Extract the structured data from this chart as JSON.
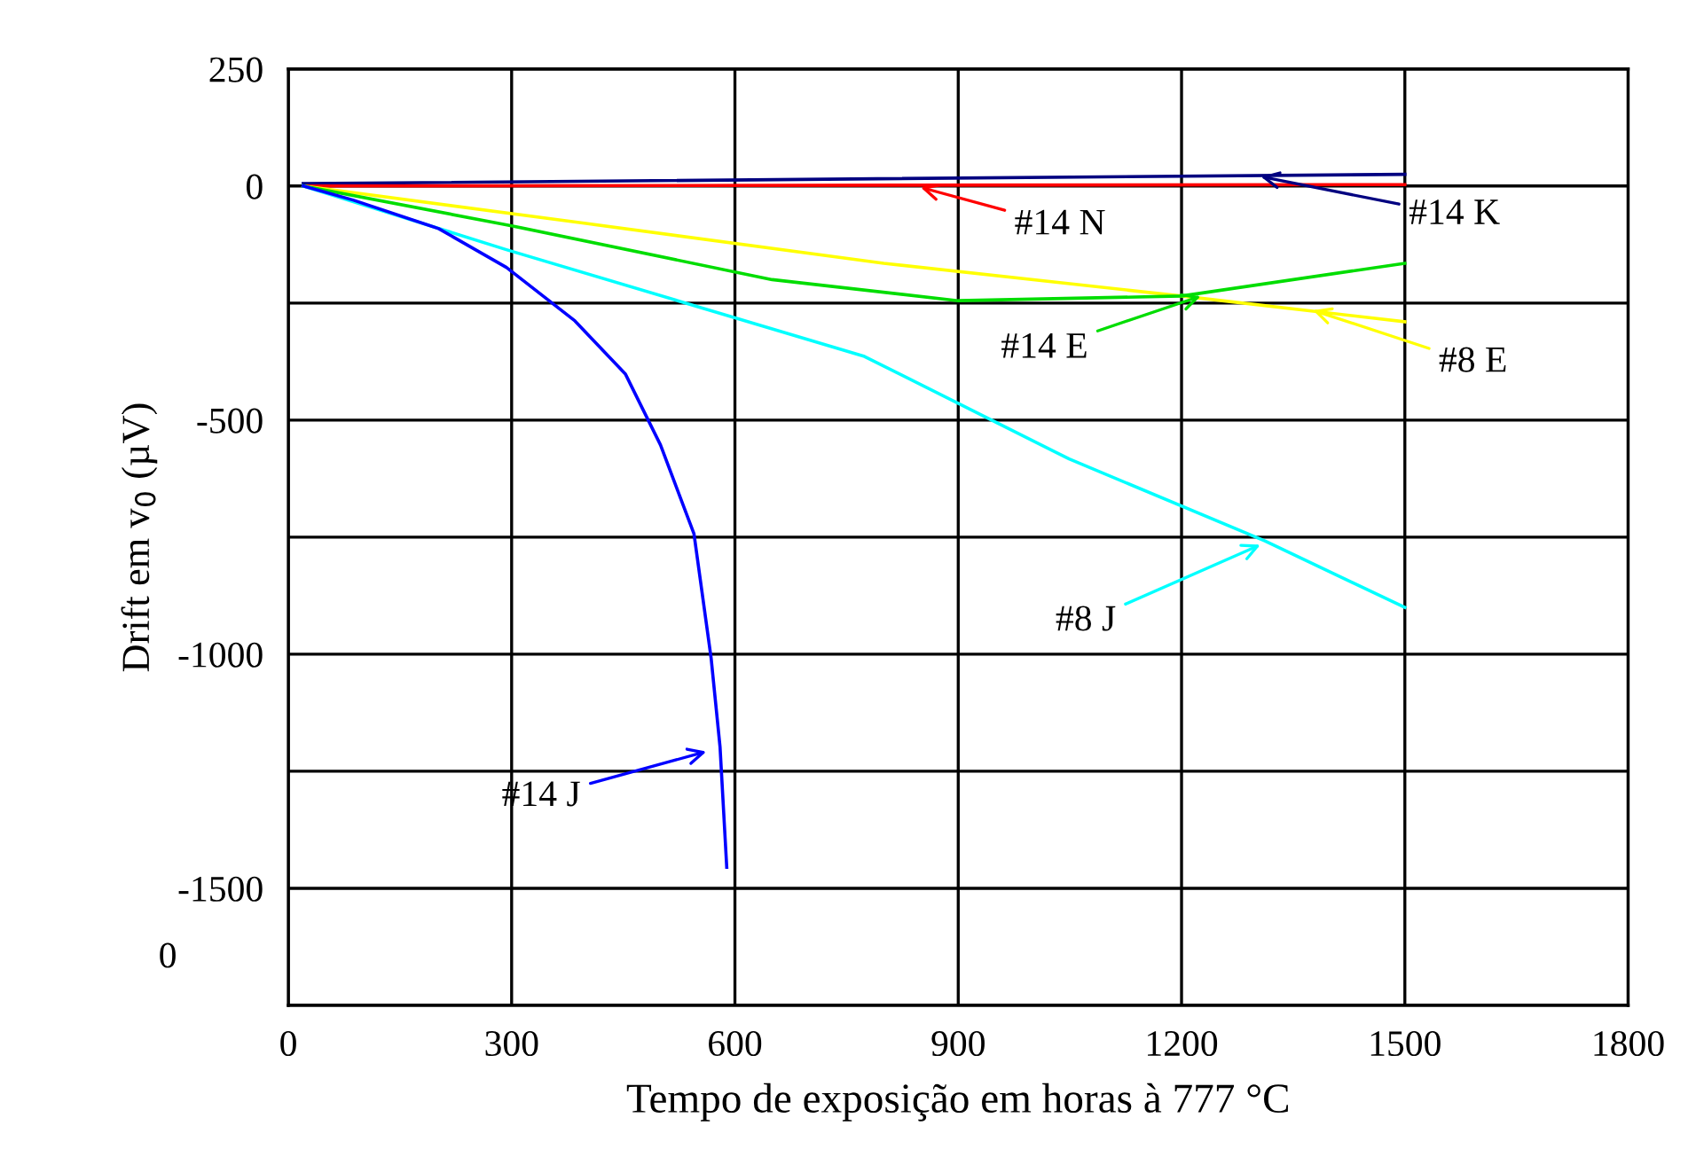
{
  "chart_data": {
    "type": "line",
    "xlabel": "Tempo de exposição em horas à 777 °C",
    "ylabel": "Drift em v$_{0}$ (µV)",
    "xlim": [
      0,
      1800
    ],
    "xticks": [
      0,
      300,
      600,
      900,
      1200,
      1500,
      1800
    ],
    "ylim": [
      -1750,
      250
    ],
    "yticks": [
      250,
      0,
      {
        "value": -250,
        "label": null
      },
      -500,
      {
        "value": -750,
        "label": null
      },
      -1000,
      {
        "value": -1250,
        "label": null
      },
      -1500,
      {
        "value": -1750,
        "label": null
      }
    ],
    "grid": true,
    "legend": false,
    "marker": "none",
    "line_style": "solid",
    "series": [
      {
        "color": "#000080",
        "x": [
          20,
          1500
        ],
        "values": [
          5,
          25
        ]
      },
      {
        "color": "#ff0000",
        "x": [
          20,
          1500
        ],
        "values": [
          0,
          3
        ]
      },
      {
        "color": "#ffff00",
        "x": [
          20,
          400,
          800,
          1200,
          1500
        ],
        "values": [
          0,
          -80,
          -165,
          -235,
          -290
        ]
      },
      {
        "color": "#00dd00",
        "x": [
          20,
          300,
          650,
          900,
          1200,
          1500
        ],
        "values": [
          0,
          -85,
          -200,
          -245,
          -235,
          -165
        ]
      },
      {
        "color": "#00ffff",
        "x": [
          20,
          293,
          774,
          1049,
          1312,
          1500
        ],
        "values": [
          0,
          -136,
          -364,
          -583,
          -758,
          -900
        ]
      },
      {
        "color": "#0000ff",
        "x": [
          20,
          87,
          202,
          293,
          385,
          453,
          500,
          545,
          568,
          580,
          589
        ],
        "values": [
          0,
          -30,
          -91,
          -174,
          -288,
          -402,
          -553,
          -743,
          -1008,
          -1198,
          -1455
        ]
      }
    ],
    "annotations": [
      {
        "text": "#14 N",
        "x": 843,
        "y": 0
      },
      {
        "text": "#14 K",
        "x": 1300,
        "y": 22
      },
      {
        "text": "#14 E",
        "x": 1232,
        "y": -232
      },
      {
        "text": "#8 E",
        "x": 1370,
        "y": -262
      },
      {
        "text": "#8 J",
        "x": 1312,
        "y": -762
      },
      {
        "text": "#14 J",
        "x": 568,
        "y": -1205
      },
      "0"
    ]
  }
}
